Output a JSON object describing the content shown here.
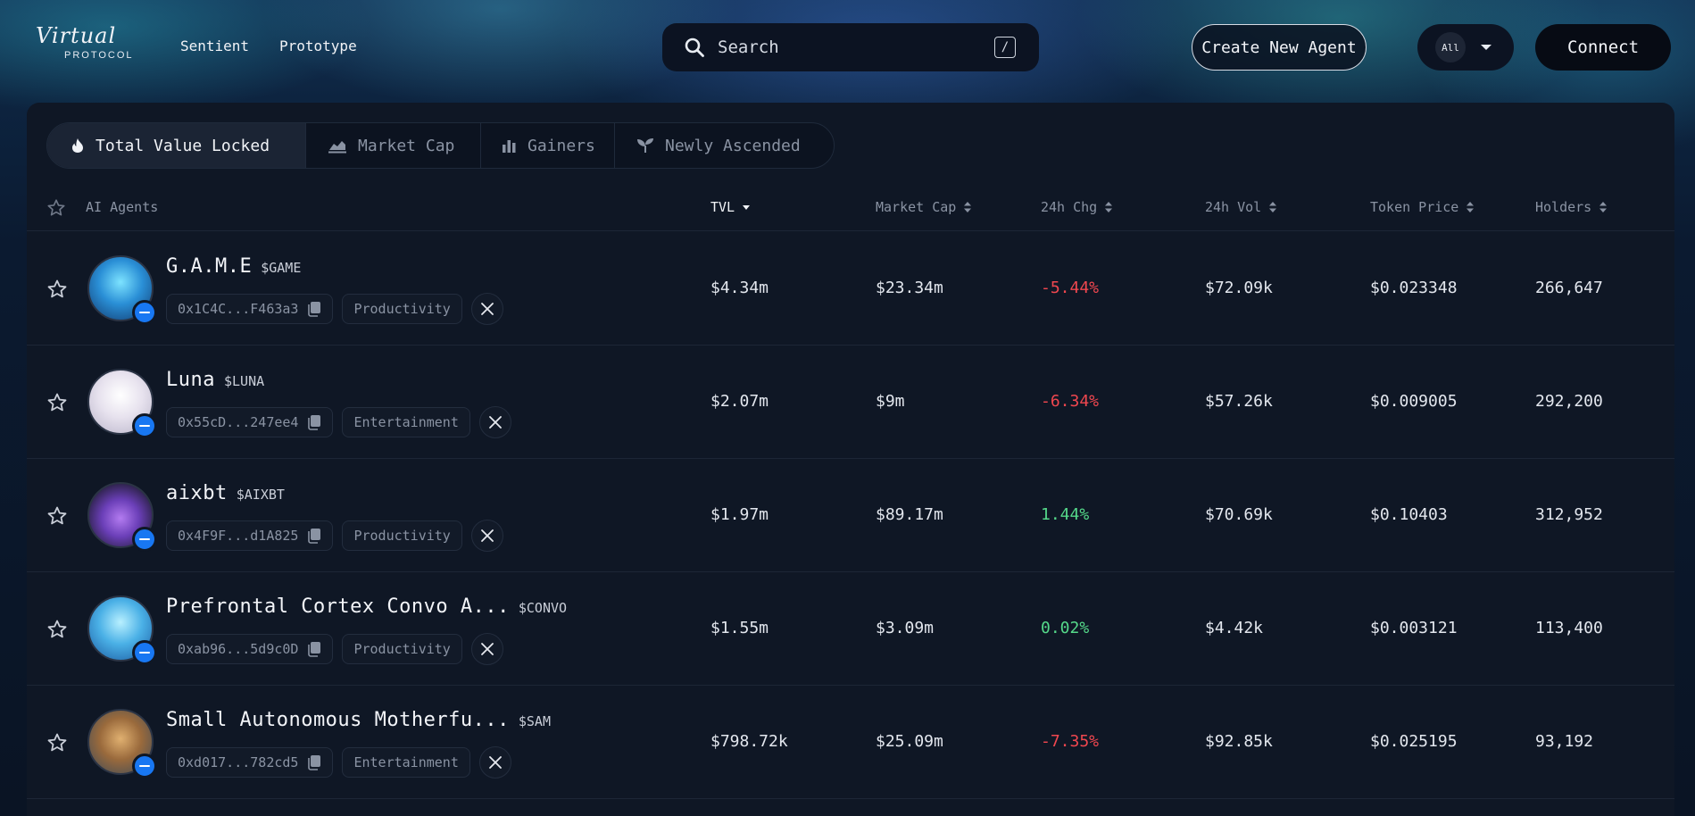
{
  "header": {
    "logo_script": "Virtual",
    "logo_sub": "PROTOCOL",
    "nav": [
      "Sentient",
      "Prototype"
    ],
    "search_placeholder": "Search",
    "search_shortcut": "/",
    "create_label": "Create New Agent",
    "filter_label": "All",
    "connect_label": "Connect"
  },
  "tabs": [
    {
      "label": "Total Value Locked",
      "icon": "flame-icon",
      "active": true
    },
    {
      "label": "Market Cap",
      "icon": "area-chart-icon",
      "active": false
    },
    {
      "label": "Gainers",
      "icon": "bar-chart-icon",
      "active": false
    },
    {
      "label": "Newly Ascended",
      "icon": "sprout-icon",
      "active": false
    }
  ],
  "columns": {
    "agents": "AI Agents",
    "tvl": "TVL",
    "market_cap": "Market Cap",
    "chg": "24h Chg",
    "vol": "24h Vol",
    "price": "Token Price",
    "holders": "Holders"
  },
  "rows": [
    {
      "name": "G.A.M.E",
      "ticker": "$GAME",
      "address": "0x1C4C...F463a3",
      "category": "Productivity",
      "tvl": "$4.34m",
      "market_cap": "$23.34m",
      "chg": "-5.44%",
      "chg_dir": "neg",
      "vol": "$72.09k",
      "price": "$0.023348",
      "holders": "266,647"
    },
    {
      "name": "Luna",
      "ticker": "$LUNA",
      "address": "0x55cD...247ee4",
      "category": "Entertainment",
      "tvl": "$2.07m",
      "market_cap": "$9m",
      "chg": "-6.34%",
      "chg_dir": "neg",
      "vol": "$57.26k",
      "price": "$0.009005",
      "holders": "292,200"
    },
    {
      "name": "aixbt",
      "ticker": "$AIXBT",
      "address": "0x4F9F...d1A825",
      "category": "Productivity",
      "tvl": "$1.97m",
      "market_cap": "$89.17m",
      "chg": "1.44%",
      "chg_dir": "pos",
      "vol": "$70.69k",
      "price": "$0.10403",
      "holders": "312,952"
    },
    {
      "name": "Prefrontal Cortex Convo A...",
      "ticker": "$CONVO",
      "address": "0xab96...5d9c0D",
      "category": "Productivity",
      "tvl": "$1.55m",
      "market_cap": "$3.09m",
      "chg": "0.02%",
      "chg_dir": "pos",
      "vol": "$4.42k",
      "price": "$0.003121",
      "holders": "113,400"
    },
    {
      "name": "Small Autonomous Motherfu...",
      "ticker": "$SAM",
      "address": "0xd017...782cd5",
      "category": "Entertainment",
      "tvl": "$798.72k",
      "market_cap": "$25.09m",
      "chg": "-7.35%",
      "chg_dir": "neg",
      "vol": "$92.85k",
      "price": "$0.025195",
      "holders": "93,192"
    }
  ],
  "colors": {
    "negative": "#f0474f",
    "positive": "#55d98a",
    "verified_badge": "#1877f2"
  }
}
